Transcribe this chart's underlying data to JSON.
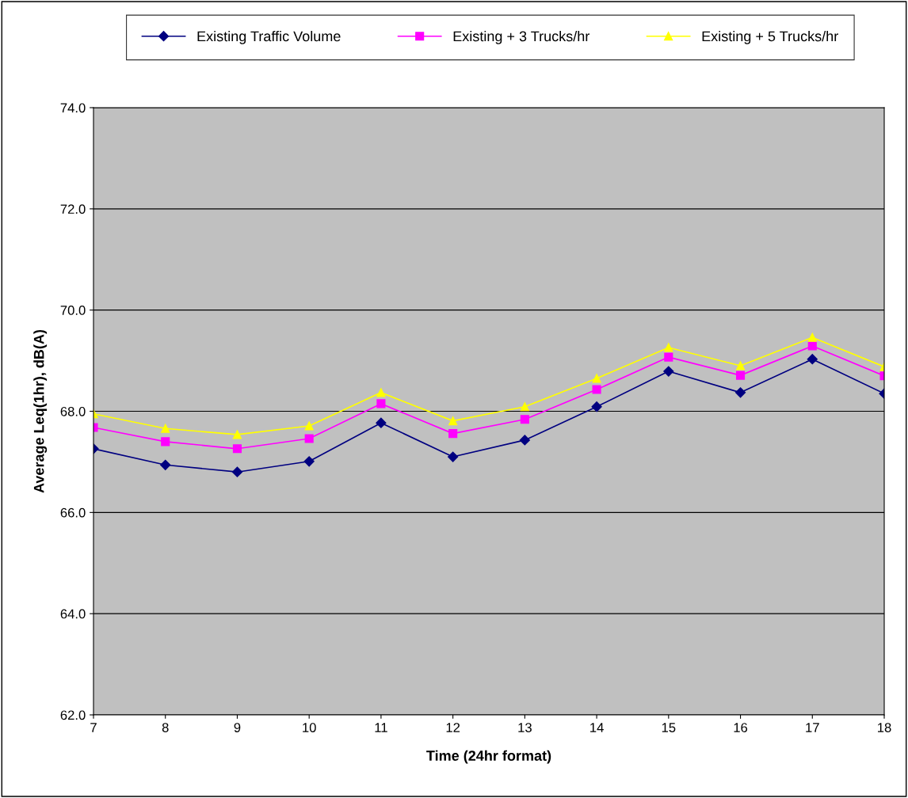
{
  "chart_data": {
    "type": "line",
    "xlabel": "Time (24hr format)",
    "ylabel": "Average Leq(1hr), dB(A)",
    "x": [
      7,
      8,
      9,
      10,
      11,
      12,
      13,
      14,
      15,
      16,
      17,
      18
    ],
    "series": [
      {
        "name": "Existing Traffic Volume",
        "color": "#000080",
        "marker": "diamond",
        "values": [
          67.26,
          66.94,
          66.8,
          67.01,
          67.77,
          67.1,
          67.43,
          68.09,
          68.79,
          68.37,
          69.03,
          68.35
        ]
      },
      {
        "name": "Existing + 3 Trucks/hr",
        "color": "#ff00ff",
        "marker": "square",
        "values": [
          67.68,
          67.4,
          67.26,
          67.46,
          68.15,
          67.56,
          67.84,
          68.43,
          69.07,
          68.71,
          69.29,
          68.7
        ]
      },
      {
        "name": "Existing + 5 Trucks/hr",
        "color": "#ffff00",
        "marker": "triangle",
        "values": [
          67.95,
          67.66,
          67.54,
          67.71,
          68.37,
          67.81,
          68.09,
          68.65,
          69.26,
          68.9,
          69.46,
          68.88
        ]
      }
    ],
    "xlim": [
      7,
      18
    ],
    "xticks": [
      7,
      8,
      9,
      10,
      11,
      12,
      13,
      14,
      15,
      16,
      17,
      18
    ],
    "ylim": [
      62,
      74
    ],
    "yticks": [
      {
        "value": 62,
        "label": "62.0"
      },
      {
        "value": 64,
        "label": "64.0"
      },
      {
        "value": 66,
        "label": "66.0"
      },
      {
        "value": 68,
        "label": "68.0"
      },
      {
        "value": 70,
        "label": "70.0"
      },
      {
        "value": 72,
        "label": "72.0"
      },
      {
        "value": 74,
        "label": "74.0"
      }
    ],
    "grid": "y",
    "legend": "top",
    "line_style": "solid"
  }
}
